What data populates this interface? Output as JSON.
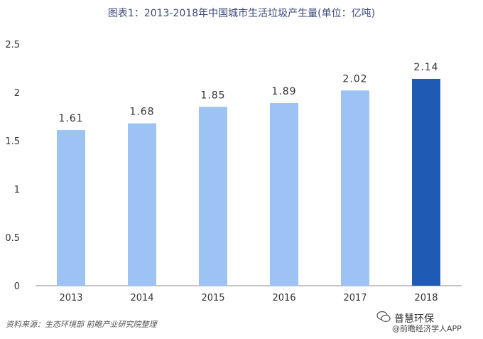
{
  "title": "图表1：2013-2018年中国城市生活垃圾产生量(单位：亿吨)",
  "source": "资料来源：生态环境部 前瞻产业研究院整理",
  "brand": {
    "name": "普慧环保",
    "sub": "@前瞻经济学人APP"
  },
  "colors": {
    "bar": "#9dc3f5",
    "highlight": "#1f5bb5",
    "axis": "#888888",
    "label": "#333333"
  },
  "chart_data": {
    "type": "bar",
    "categories": [
      "2013",
      "2014",
      "2015",
      "2016",
      "2017",
      "2018"
    ],
    "values": [
      1.61,
      1.68,
      1.85,
      1.89,
      2.02,
      2.14
    ],
    "data_labels": [
      "1.61",
      "1.68",
      "1.85",
      "1.89",
      "2.02",
      "2.14"
    ],
    "y_ticks": [
      "0",
      "0.5",
      "1",
      "1.5",
      "2",
      "2.5"
    ],
    "ylim": [
      0,
      2.5
    ],
    "highlight_category": "2018",
    "grid": false,
    "legend": "none"
  }
}
